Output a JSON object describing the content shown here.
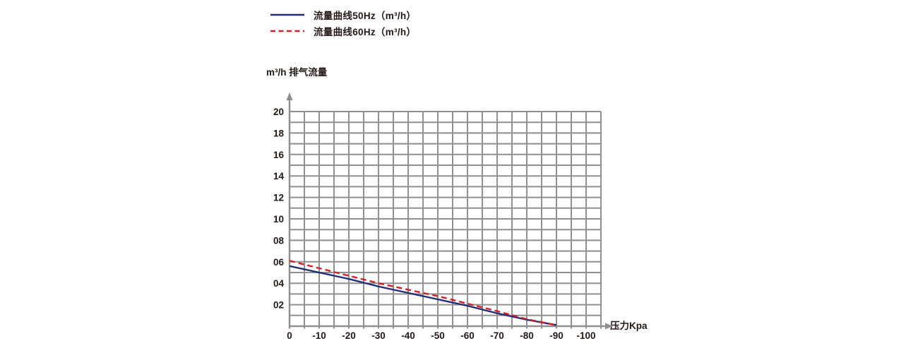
{
  "legend": {
    "items": [
      {
        "label": "流量曲线50Hz（m³/h）",
        "line_style": "solid",
        "color": "#232d76"
      },
      {
        "label": "流量曲线60Hz（m³/h）",
        "line_style": "dashed",
        "color": "#d0202a"
      }
    ]
  },
  "chart_data": {
    "type": "line",
    "title": "",
    "ylabel": "m³/h 排气流量",
    "xlabel": "压力Kpa",
    "x_ticks": [
      "0",
      "-10",
      "-20",
      "-30",
      "-40",
      "-50",
      "-60",
      "-70",
      "-80",
      "-90",
      "-100"
    ],
    "y_ticks": [
      "20",
      "18",
      "16",
      "14",
      "12",
      "10",
      "08",
      "06",
      "04",
      "02"
    ],
    "xlim": [
      0,
      -105
    ],
    "ylim": [
      0,
      20
    ],
    "grid": true,
    "legend_position": "top-left",
    "series": [
      {
        "name": "流量曲线50Hz（m³/h）",
        "color": "#232d76",
        "style": "solid",
        "x": [
          0,
          -10,
          -20,
          -30,
          -40,
          -50,
          -60,
          -70,
          -80,
          -90
        ],
        "y": [
          5.6,
          5.0,
          4.4,
          3.7,
          3.1,
          2.5,
          1.9,
          1.2,
          0.6,
          0.1
        ]
      },
      {
        "name": "流量曲线60Hz（m³/h）",
        "color": "#d0202a",
        "style": "dashed",
        "x": [
          0,
          -10,
          -20,
          -30,
          -40,
          -50,
          -60,
          -70,
          -80,
          -90
        ],
        "y": [
          6.1,
          5.4,
          4.7,
          4.0,
          3.4,
          2.8,
          2.1,
          1.4,
          0.65,
          0.1
        ]
      }
    ]
  },
  "colors": {
    "grid": "#909090",
    "axis": "#8f8f8f",
    "text": "#231815",
    "background": "#ffffff"
  }
}
